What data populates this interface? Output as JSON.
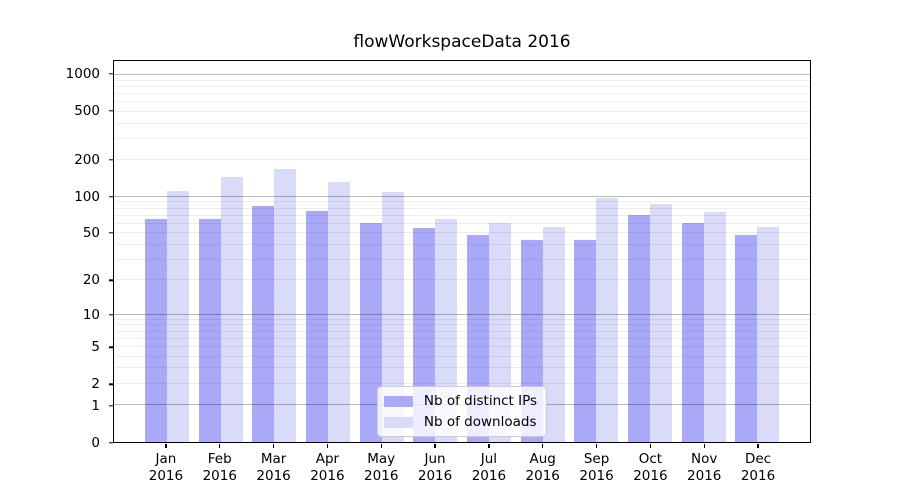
{
  "chart_data": {
    "type": "bar",
    "title": "flowWorkspaceData 2016",
    "categories": [
      "Jan",
      "Feb",
      "Mar",
      "Apr",
      "May",
      "Jun",
      "Jul",
      "Aug",
      "Sep",
      "Oct",
      "Nov",
      "Dec"
    ],
    "year": "2016",
    "series": [
      {
        "name": "Nb of distinct IPs",
        "color": "#a9a9f7",
        "values": [
          66,
          66,
          84,
          77,
          61,
          55,
          48,
          44,
          44,
          71,
          61,
          48
        ]
      },
      {
        "name": "Nb of downloads",
        "color": "#dadaf9",
        "values": [
          111,
          147,
          171,
          133,
          110,
          66,
          61,
          56,
          98,
          87,
          75,
          56
        ]
      }
    ],
    "xlabel": "",
    "ylabel": "",
    "yscale": "log1p",
    "ylim": [
      0,
      1300
    ],
    "ytick_labels": [
      "1000",
      "500",
      "200",
      "100",
      "50",
      "20",
      "10",
      "5",
      "2",
      "1",
      "0"
    ],
    "ytick_values": [
      1000,
      500,
      200,
      100,
      50,
      20,
      10,
      5,
      2,
      1,
      0
    ],
    "major_gridlines": [
      1,
      10,
      100,
      1000
    ],
    "minor_gridlines": [
      2,
      3,
      4,
      5,
      6,
      7,
      8,
      9,
      20,
      30,
      40,
      50,
      60,
      70,
      80,
      90,
      200,
      300,
      400,
      500,
      600,
      700,
      800,
      900
    ],
    "grid": true,
    "legend_position": "lower center"
  },
  "colors": {
    "axis": "#000000",
    "text": "#000000",
    "legend_border": "#cccccc",
    "background": "#ffffff"
  }
}
